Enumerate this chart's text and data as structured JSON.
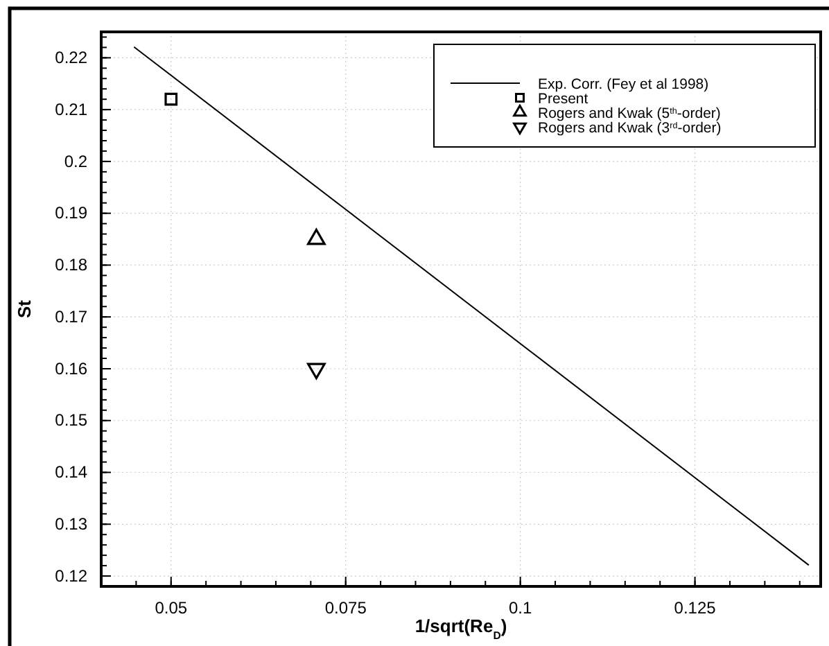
{
  "chart_data": {
    "type": "scatter",
    "xlabel": "1/sqrt(Re$_{D}$)",
    "ylabel": "St",
    "xlim": [
      0.04,
      0.143
    ],
    "ylim": [
      0.118,
      0.225
    ],
    "xticks": [
      0.05,
      0.075,
      0.1,
      0.125
    ],
    "yticks": [
      0.12,
      0.13,
      0.14,
      0.15,
      0.16,
      0.17,
      0.18,
      0.19,
      0.2,
      0.21,
      0.22
    ],
    "grid": true,
    "legend": "top right",
    "series": [
      {
        "name": "Exp. Corr. (Fey et al 1998)",
        "type": "line",
        "color": "#000000",
        "marker": "none",
        "line_style": "solid",
        "x": [
          0.0447,
          0.1413
        ],
        "values": [
          0.2221,
          0.1221
        ]
      },
      {
        "name": "Present",
        "color": "#000000",
        "marker": "square",
        "x": [
          0.05
        ],
        "values": [
          0.212
        ]
      },
      {
        "name": "Rogers and Kwak (5$^{th}$-order)",
        "color": "#000000",
        "marker": "triangle",
        "x": [
          0.0708
        ],
        "values": [
          0.185
        ]
      },
      {
        "name": "Rogers and Kwak (3$^{rd}$-order)",
        "color": "#000000",
        "marker": "triangle-down",
        "x": [
          0.0708
        ],
        "values": [
          0.16
        ]
      }
    ]
  }
}
